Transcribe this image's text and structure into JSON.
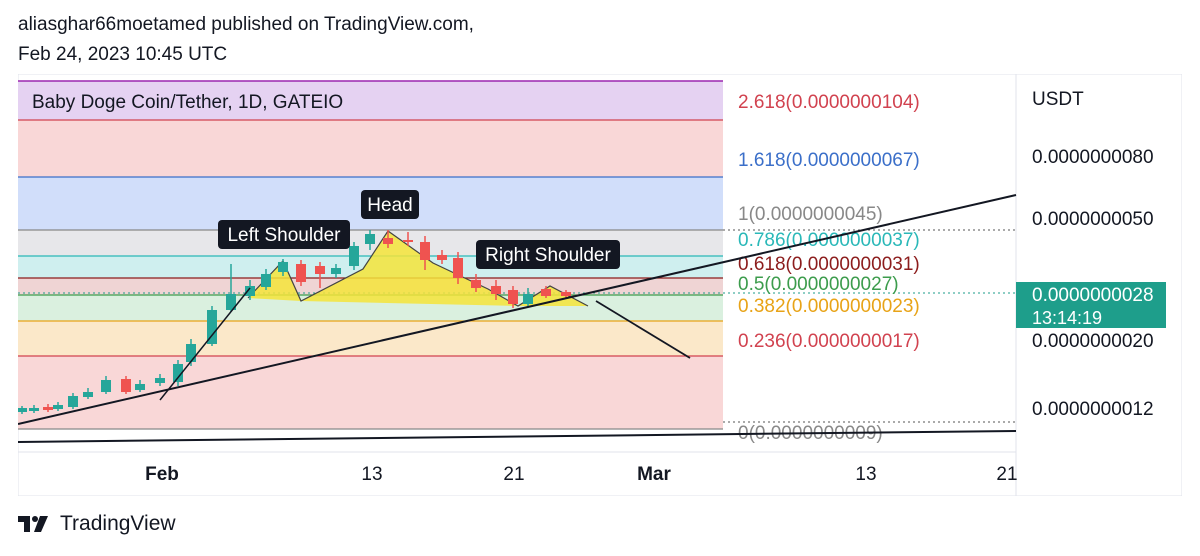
{
  "header": {
    "line1": "aliasghar66moetamed published on TradingView.com,",
    "line2": "Feb 24, 2023 10:45 UTC"
  },
  "footer": {
    "brand": "TradingView",
    "logo_icon": "tradingview-logo-icon"
  },
  "chart_data": {
    "type": "candlestick",
    "title": "Baby Doge Coin/Tether, 1D, GATEIO",
    "currency": "USDT",
    "x_ticks": [
      "Feb",
      "13",
      "21",
      "Mar",
      "13",
      "21"
    ],
    "y_ticks": [
      "0.0000000080",
      "0.0000000050",
      "0.0000000020",
      "0.0000000012"
    ],
    "last_price": {
      "value": "0.0000000028",
      "countdown": "13:14:19"
    },
    "fib_levels": [
      {
        "label": "2.618(0.0000000104)",
        "color": "#d1424f"
      },
      {
        "label": "1.618(0.0000000067)",
        "color": "#3b6fc9"
      },
      {
        "label": "1(0.0000000045)",
        "color": "#888888"
      },
      {
        "label": "0.786(0.0000000037)",
        "color": "#2ab8b8"
      },
      {
        "label": "0.618(0.0000000031)",
        "color": "#8c1c1c"
      },
      {
        "label": "0.5(0.0000000027)",
        "color": "#3c9c4c"
      },
      {
        "label": "0.382(0.0000000023)",
        "color": "#e8a317"
      },
      {
        "label": "0.236(0.0000000017)",
        "color": "#d1424f"
      },
      {
        "label": "0(0.0000000009)",
        "color": "#888888"
      }
    ],
    "annotations": [
      "Left Shoulder",
      "Head",
      "Right Shoulder"
    ],
    "colors": {
      "up": "#26a69a",
      "down": "#ef5350",
      "pattern_fill": "#f5e43a",
      "price_tag": "#1e9e8b"
    }
  }
}
